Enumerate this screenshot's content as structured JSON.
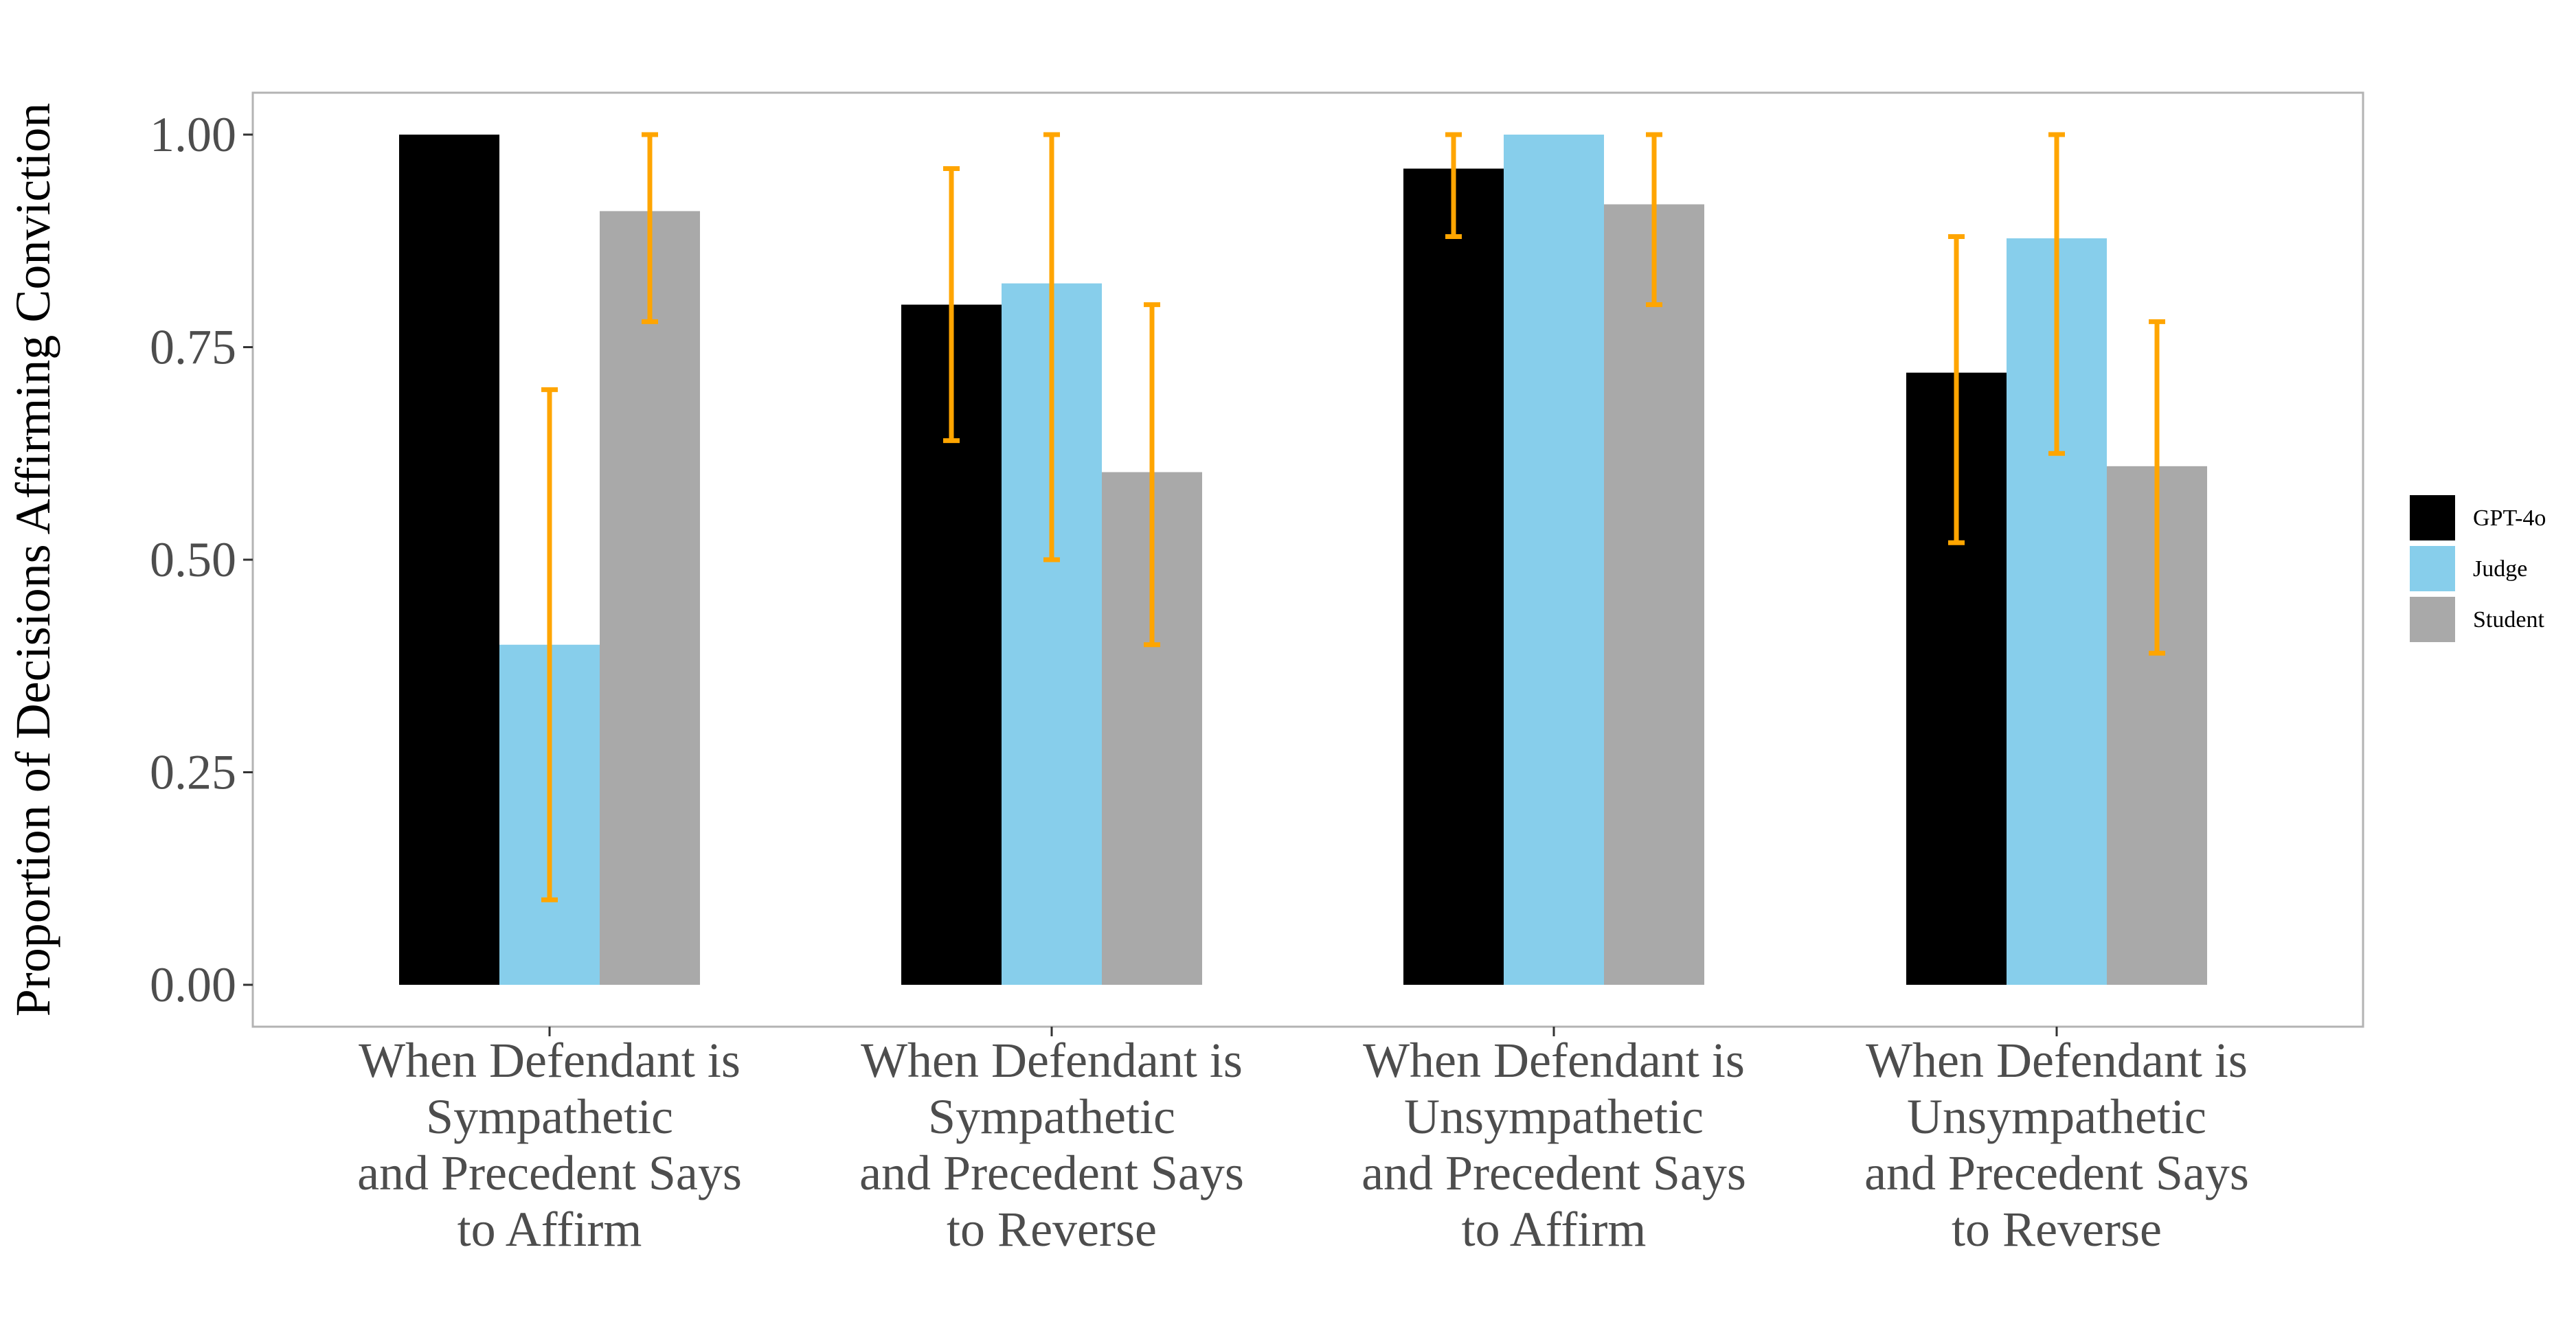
{
  "chart_data": {
    "type": "bar",
    "ylabel": "Proportion of Decisions Affirming Conviction",
    "xlabel": "",
    "ylim": [
      0,
      1.05
    ],
    "yticks": [
      "0.00",
      "0.25",
      "0.50",
      "0.75",
      "1.00"
    ],
    "ytick_values": [
      0,
      0.25,
      0.5,
      0.75,
      1.0
    ],
    "grid": false,
    "legend_position": "right",
    "categories": [
      [
        "When Defendant is",
        "Sympathetic",
        "and Precedent Says",
        "to Affirm"
      ],
      [
        "When Defendant is",
        "Sympathetic",
        "and Precedent Says",
        "to Reverse"
      ],
      [
        "When Defendant is",
        "Unsympathetic",
        "and Precedent Says",
        "to Affirm"
      ],
      [
        "When Defendant is",
        "Unsympathetic",
        "and Precedent Says",
        "to Reverse"
      ]
    ],
    "series": [
      {
        "name": "GPT-4o",
        "color": "#000000",
        "values": [
          1.0,
          0.8,
          0.96,
          0.72
        ],
        "errors": [
          null,
          [
            0.64,
            0.96
          ],
          [
            0.88,
            1.0
          ],
          [
            0.52,
            0.88
          ]
        ]
      },
      {
        "name": "Judge",
        "color": "#87CEEB",
        "values": [
          0.4,
          0.825,
          1.0,
          0.878
        ],
        "errors": [
          [
            0.1,
            0.7
          ],
          [
            0.5,
            1.0
          ],
          null,
          [
            0.625,
            1.0
          ]
        ]
      },
      {
        "name": "Student",
        "color": "#A9A9A9",
        "values": [
          0.91,
          0.603,
          0.918,
          0.61
        ],
        "errors": [
          [
            0.78,
            1.0
          ],
          [
            0.4,
            0.8
          ],
          [
            0.8,
            1.0
          ],
          [
            0.39,
            0.78
          ]
        ]
      }
    ],
    "error_bar_color": "#FFA500"
  }
}
